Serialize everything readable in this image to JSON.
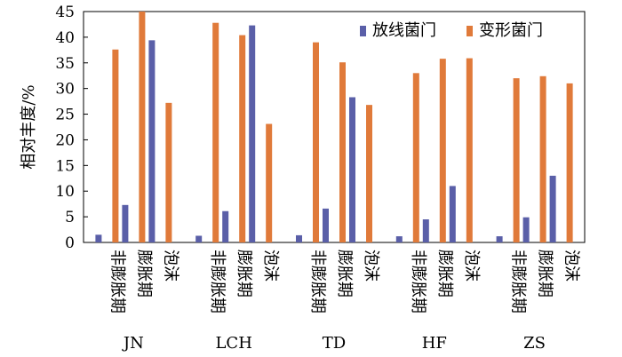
{
  "chart_data": {
    "type": "bar",
    "ylabel": "相对丰度/%",
    "ylim": [
      0,
      45
    ],
    "yticks": [
      0,
      5,
      10,
      15,
      20,
      25,
      30,
      35,
      40,
      45
    ],
    "grid": false,
    "legend_position": "top-right",
    "groups": [
      "JN",
      "LCH",
      "TD",
      "HF",
      "ZS"
    ],
    "stages": [
      "非膨胀期",
      "膨胀期",
      "泡沫"
    ],
    "series": [
      {
        "name": "放线菌门",
        "color": "#5a5fa8",
        "values": [
          [
            1.5,
            7.3,
            39.4
          ],
          [
            1.3,
            6.1,
            42.3
          ],
          [
            1.4,
            6.6,
            28.3
          ],
          [
            1.2,
            4.5,
            11.0
          ],
          [
            1.2,
            4.9,
            13.0
          ]
        ]
      },
      {
        "name": "变形菌门",
        "color": "#e07a3a",
        "values": [
          [
            37.6,
            45.0,
            27.2
          ],
          [
            42.8,
            40.4,
            23.1
          ],
          [
            39.0,
            35.1,
            26.8
          ],
          [
            33.0,
            35.8,
            35.9
          ],
          [
            32.0,
            32.4,
            31.0
          ]
        ]
      }
    ]
  }
}
